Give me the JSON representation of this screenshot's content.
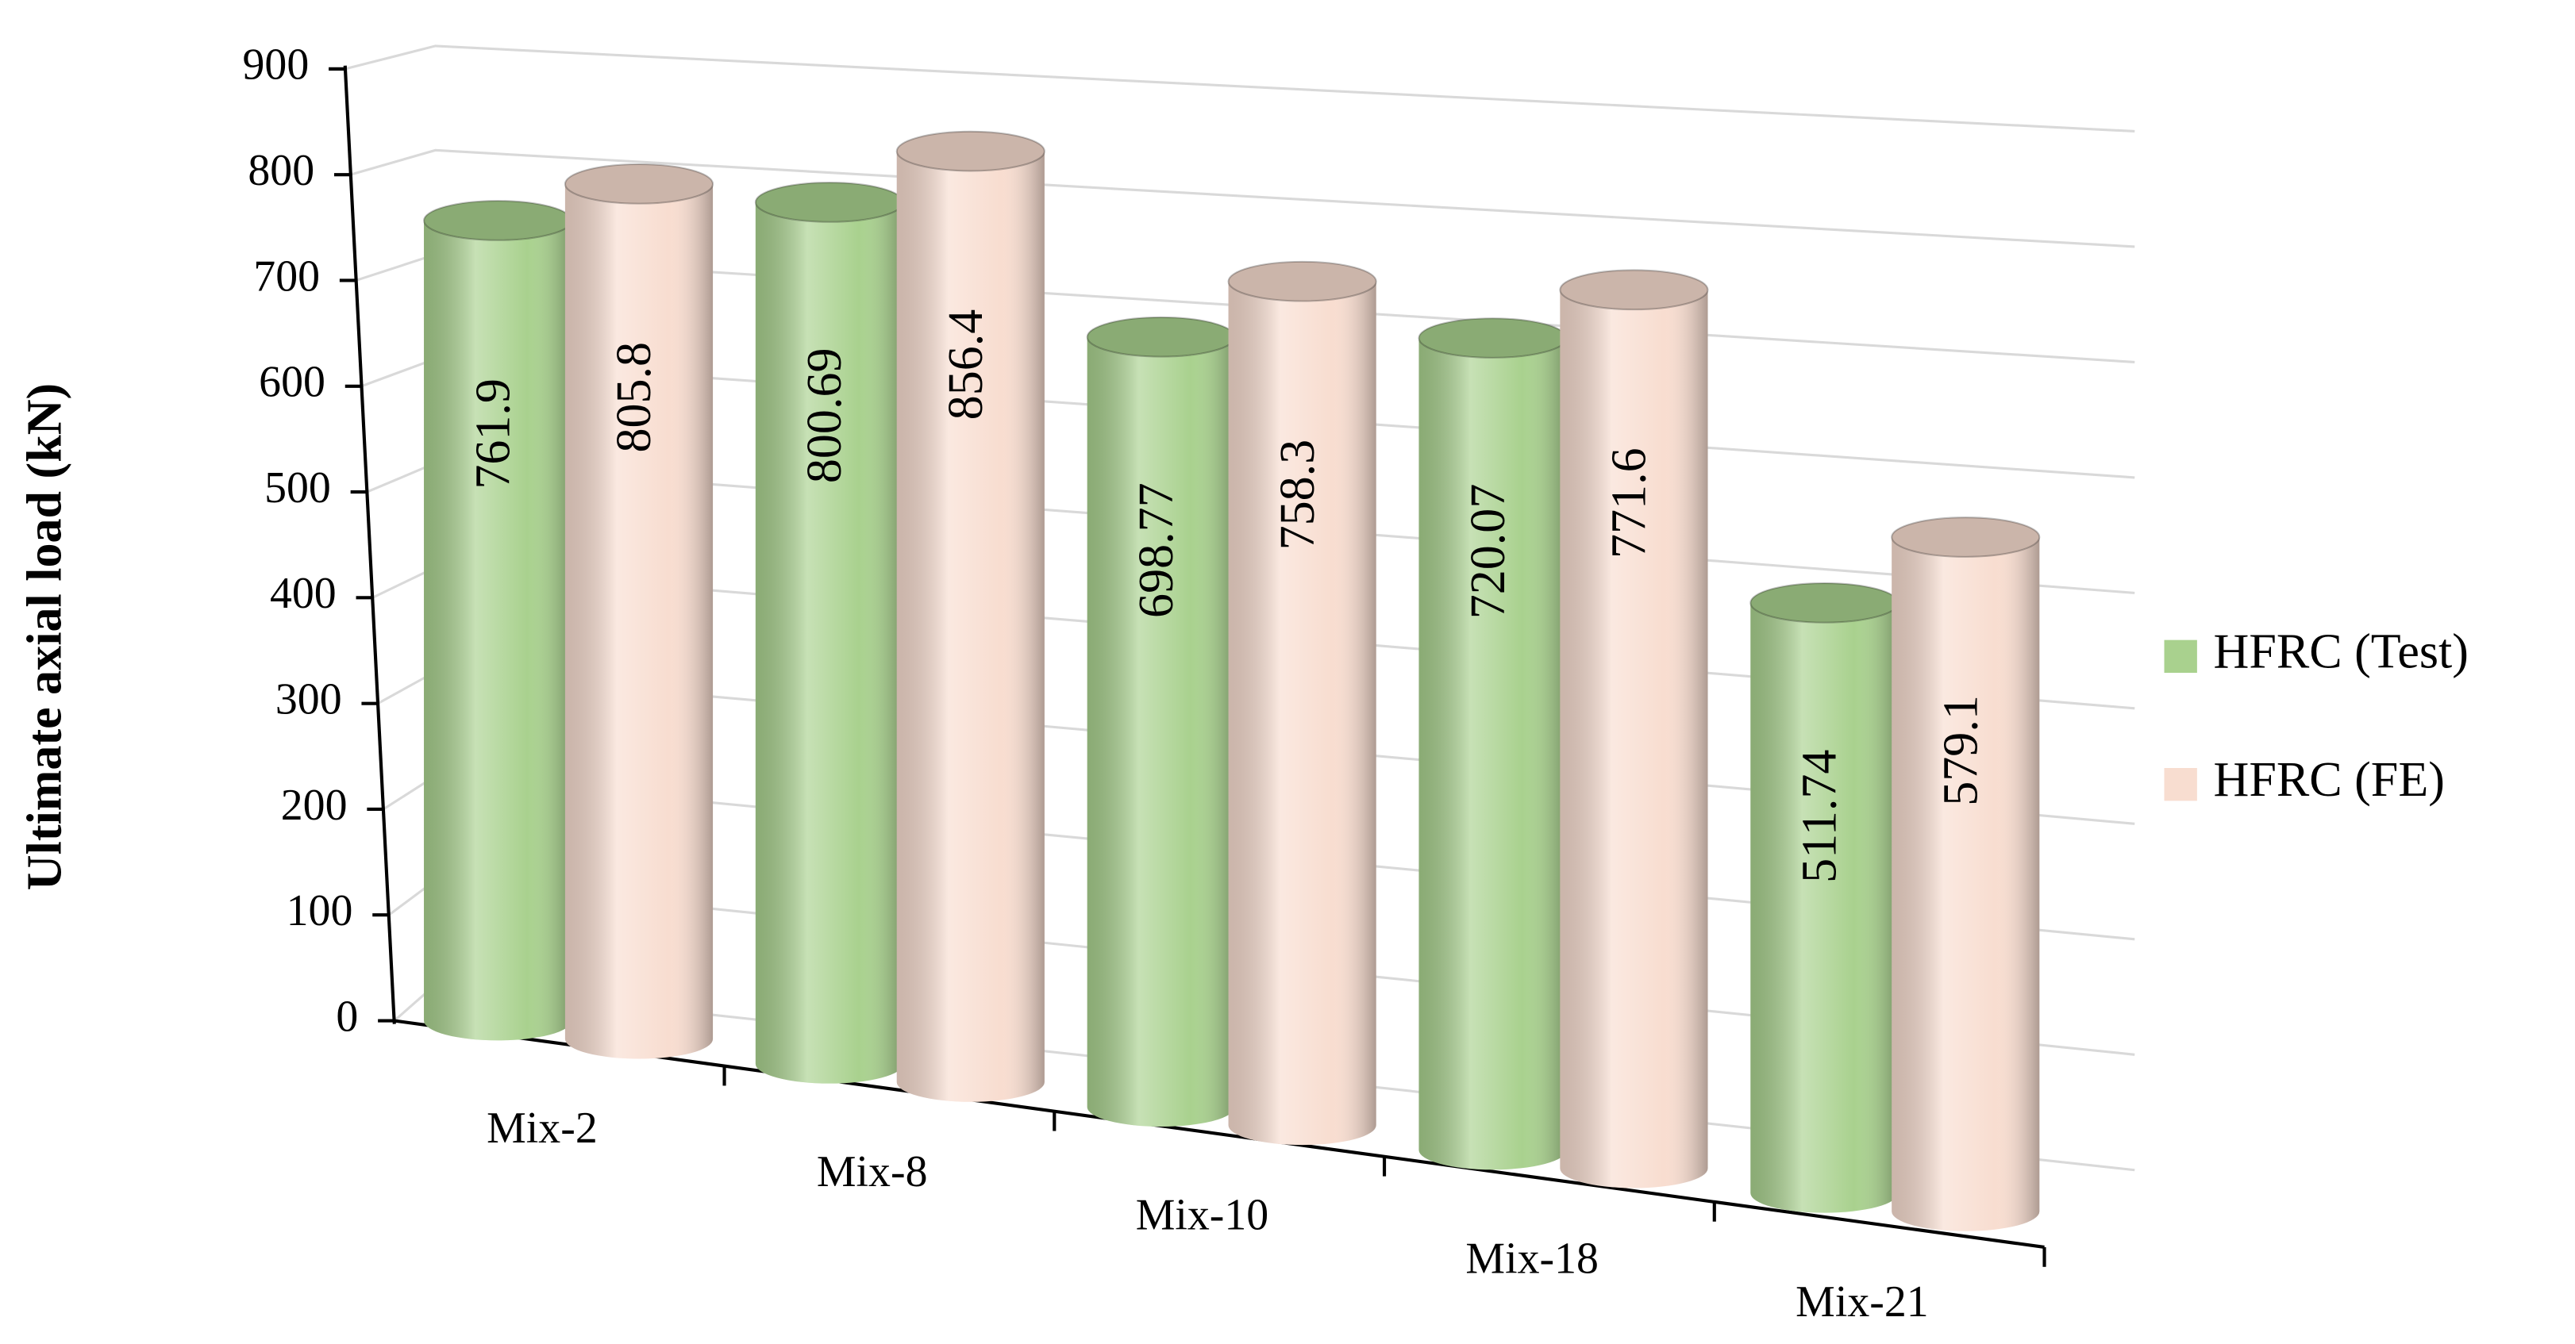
{
  "chart_data": {
    "type": "bar3d-cylinder",
    "y_label": "Ultimate axial load (kN)",
    "categories": [
      "Mix-2",
      "Mix-8",
      "Mix-10",
      "Mix-18",
      "Mix-21"
    ],
    "series": [
      {
        "name": "HFRC (Test)",
        "color": "#a9d18e",
        "values": [
          761.9,
          800.69,
          698.77,
          720.07,
          511.74
        ]
      },
      {
        "name": "HFRC (FE)",
        "color": "#f8ddd0",
        "values": [
          805.8,
          856.4,
          758.3,
          771.6,
          579.1
        ]
      }
    ],
    "ylim": [
      0,
      900
    ],
    "yticks": [
      0,
      100,
      200,
      300,
      400,
      500,
      600,
      700,
      800,
      900
    ],
    "grid": true,
    "legend": "right"
  }
}
